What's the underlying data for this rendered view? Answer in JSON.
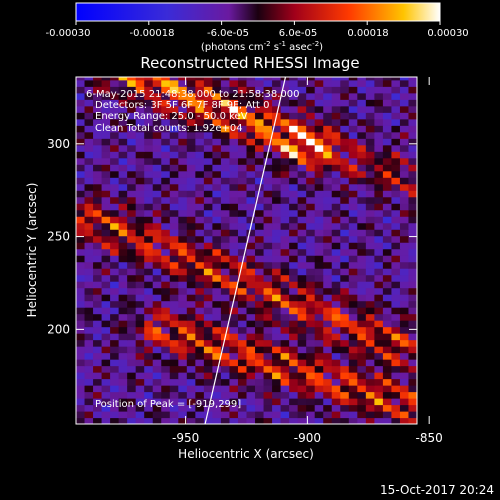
{
  "colorbar": {
    "tick_labels": [
      "-0.00030",
      "-0.00018",
      "-6.0e-05",
      "6.0e-05",
      "0.00018",
      "0.00030"
    ],
    "unit_main": "(photons cm",
    "unit_exp1": "-2",
    "unit_mid": " s",
    "unit_exp2": "-1",
    "unit_end": " asec",
    "unit_exp3": "-2",
    "unit_close": ")",
    "range": [
      -0.0003,
      0.0003
    ]
  },
  "annotations": {
    "time": "6-May-2015 21:48:38.000 to 21:58:38.000",
    "detectors": "Detectors: 3F 5F 6F 7F 8F 9F; Att 0",
    "energy": "Energy Range: 25.0 - 50.0 keV",
    "clean": "Clean    Total counts: 1.92e+04",
    "peak": "Position of Peak = [-919,299]"
  },
  "footer": {
    "timestamp": "15-Oct-2017 20:24"
  },
  "chart_data": {
    "type": "heatmap",
    "title": "Reconstructed RHESSI Image",
    "xlabel": "Heliocentric X (arcsec)",
    "ylabel": "Heliocentric Y (arcsec)",
    "xlim": [
      -995,
      -855
    ],
    "ylim": [
      149,
      336
    ],
    "x_ticks": [
      -950,
      -900,
      -850
    ],
    "x_tick_labels": [
      "-950",
      "-900",
      "-850"
    ],
    "y_ticks": [
      200,
      250,
      300
    ],
    "y_tick_labels": [
      "200",
      "250",
      "300"
    ],
    "limb_line": [
      [
        -942,
        149
      ],
      [
        -909,
        336
      ]
    ],
    "bright_bands": [
      {
        "x0": -975,
        "y0": 340,
        "x1": -900,
        "y1": 300,
        "peak": 0.0003
      },
      {
        "x0": -990,
        "y0": 260,
        "x1": -860,
        "y1": 190,
        "peak": 0.00022
      },
      {
        "x0": -960,
        "y0": 200,
        "x1": -860,
        "y1": 160,
        "peak": 0.00024
      },
      {
        "x0": -900,
        "y0": 300,
        "x1": -835,
        "y1": 270,
        "peak": 0.00015
      }
    ],
    "peak_position": [
      -919,
      299
    ],
    "value_range": [
      -0.0003,
      0.0003
    ]
  }
}
